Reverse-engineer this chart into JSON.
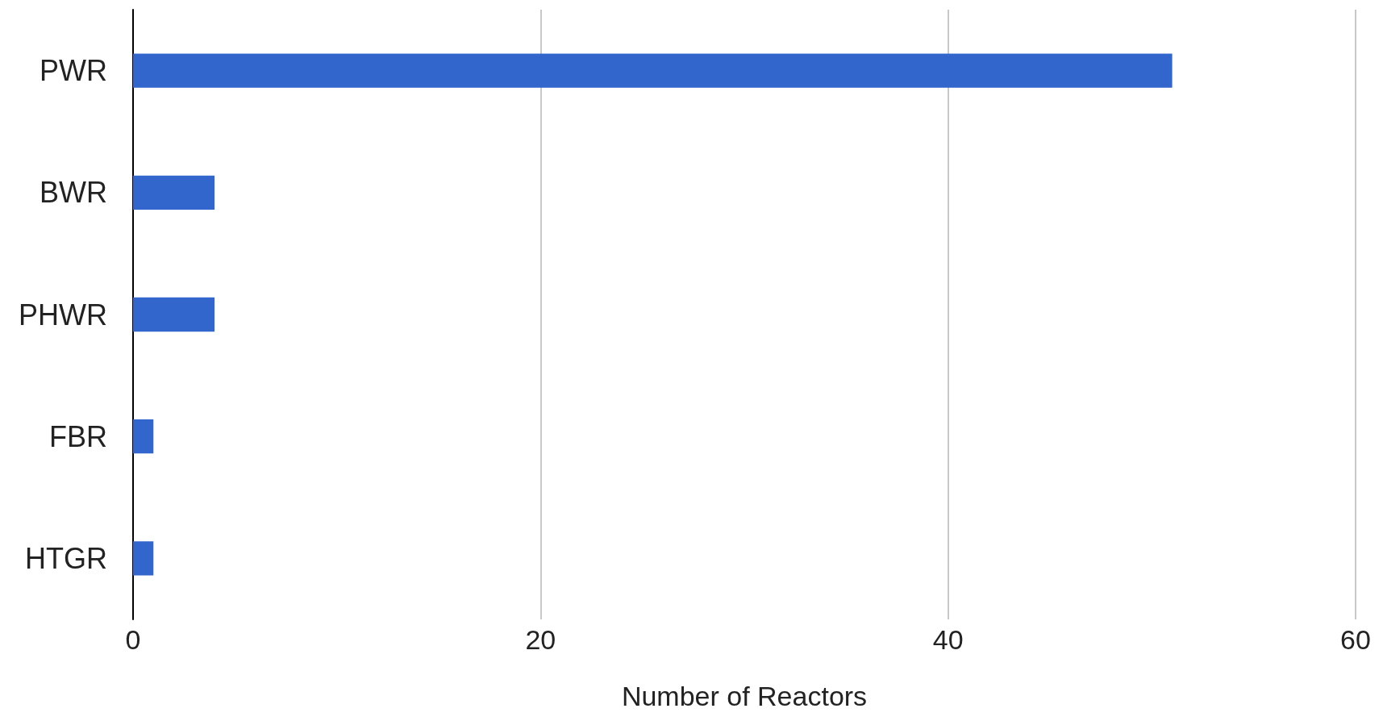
{
  "chart_data": {
    "type": "bar",
    "orientation": "horizontal",
    "xlabel": "Number of Reactors",
    "categories": [
      "PWR",
      "BWR",
      "PHWR",
      "FBR",
      "HTGR"
    ],
    "values": [
      51,
      4,
      4,
      1,
      1
    ],
    "color": "#3366cc",
    "xlim": [
      0,
      60
    ],
    "xticks": [
      0,
      20,
      40,
      60
    ],
    "grid": "x"
  }
}
